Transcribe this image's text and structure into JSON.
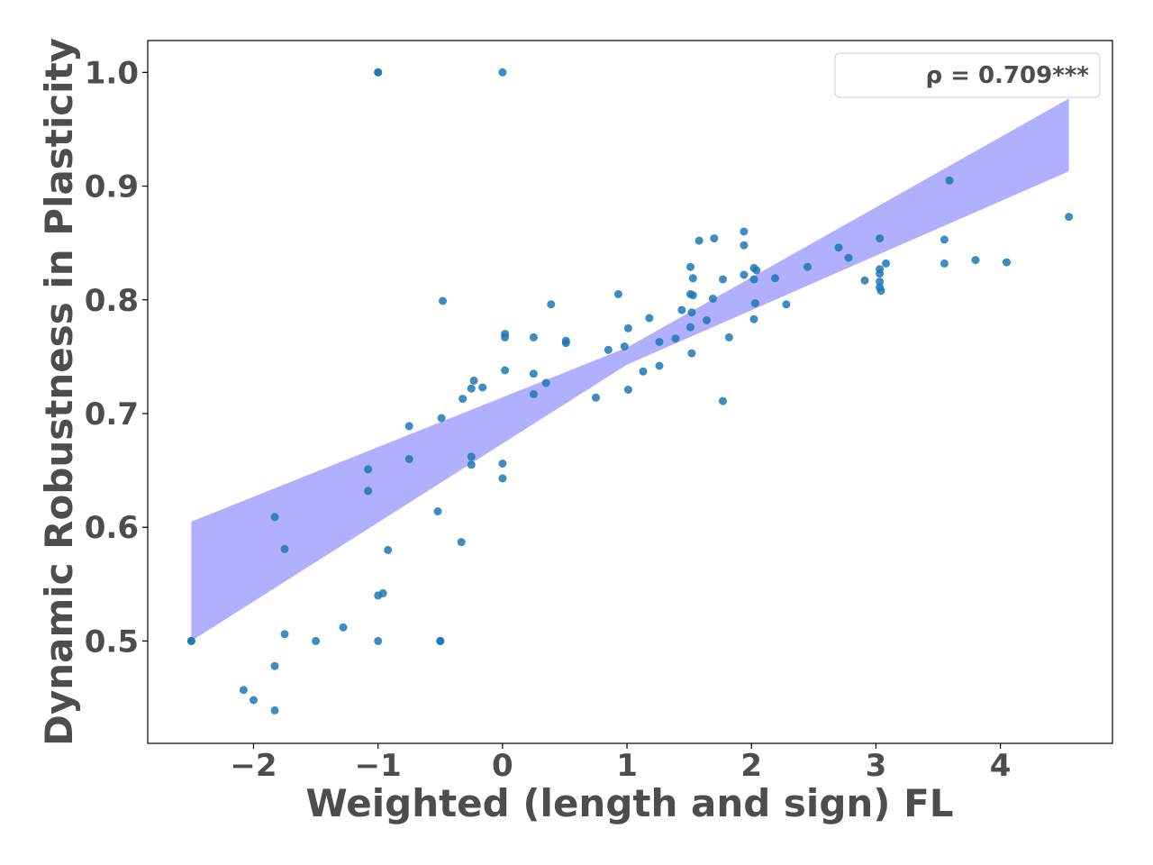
{
  "chart_data": {
    "type": "scatter",
    "title": "",
    "xlabel": "Weighted (length and sign) FL",
    "ylabel": "Dynamic Robustness in Plasticity",
    "xlim": [
      -2.85,
      4.9
    ],
    "ylim": [
      0.41,
      1.028
    ],
    "x_ticks": [
      -2,
      -1,
      0,
      1,
      2,
      3,
      4
    ],
    "x_tick_labels": [
      "−2",
      "−1",
      "0",
      "1",
      "2",
      "3",
      "4"
    ],
    "y_ticks": [
      0.5,
      0.6,
      0.7,
      0.8,
      0.9,
      1.0
    ],
    "y_tick_labels": [
      "0.5",
      "0.6",
      "0.7",
      "0.8",
      "0.9",
      "1.0"
    ],
    "grid": false,
    "legend": {
      "placement": "top-right",
      "text": "ρ = 0.709***"
    },
    "colors": {
      "points": "#1f77b4",
      "band": "#b0b0ff",
      "text": "#4d4d4d"
    },
    "regression_band": {
      "x": [
        -2.5,
        1.0,
        4.55
      ],
      "lower": [
        0.5,
        0.743,
        0.913
      ],
      "upper": [
        0.605,
        0.758,
        0.977
      ]
    },
    "points": [
      {
        "x": -2.5,
        "y": 0.5
      },
      {
        "x": -2.5,
        "y": 0.5
      },
      {
        "x": -2.08,
        "y": 0.457
      },
      {
        "x": -2.0,
        "y": 0.448
      },
      {
        "x": -1.83,
        "y": 0.439
      },
      {
        "x": -1.83,
        "y": 0.478
      },
      {
        "x": -1.83,
        "y": 0.609
      },
      {
        "x": -1.75,
        "y": 0.506
      },
      {
        "x": -1.75,
        "y": 0.581
      },
      {
        "x": -1.5,
        "y": 0.5
      },
      {
        "x": -1.28,
        "y": 0.512
      },
      {
        "x": -1.08,
        "y": 0.651
      },
      {
        "x": -1.08,
        "y": 0.632
      },
      {
        "x": -1.0,
        "y": 1.0
      },
      {
        "x": -1.0,
        "y": 1.0
      },
      {
        "x": -1.0,
        "y": 0.5
      },
      {
        "x": -1.0,
        "y": 0.54
      },
      {
        "x": -0.96,
        "y": 0.542
      },
      {
        "x": -0.92,
        "y": 0.58
      },
      {
        "x": -0.75,
        "y": 0.689
      },
      {
        "x": -0.75,
        "y": 0.66
      },
      {
        "x": -0.52,
        "y": 0.614
      },
      {
        "x": -0.5,
        "y": 0.5
      },
      {
        "x": -0.5,
        "y": 0.5
      },
      {
        "x": -0.49,
        "y": 0.696
      },
      {
        "x": -0.48,
        "y": 0.799
      },
      {
        "x": -0.33,
        "y": 0.587
      },
      {
        "x": -0.32,
        "y": 0.713
      },
      {
        "x": -0.25,
        "y": 0.722
      },
      {
        "x": -0.25,
        "y": 0.662
      },
      {
        "x": -0.25,
        "y": 0.655
      },
      {
        "x": -0.23,
        "y": 0.729
      },
      {
        "x": -0.16,
        "y": 0.723
      },
      {
        "x": 0.0,
        "y": 1.0
      },
      {
        "x": 0.0,
        "y": 0.656
      },
      {
        "x": 0.0,
        "y": 0.643
      },
      {
        "x": 0.02,
        "y": 0.738
      },
      {
        "x": 0.02,
        "y": 0.767
      },
      {
        "x": 0.02,
        "y": 0.77
      },
      {
        "x": 0.25,
        "y": 0.735
      },
      {
        "x": 0.25,
        "y": 0.767
      },
      {
        "x": 0.25,
        "y": 0.717
      },
      {
        "x": 0.35,
        "y": 0.727
      },
      {
        "x": 0.39,
        "y": 0.796
      },
      {
        "x": 0.51,
        "y": 0.764
      },
      {
        "x": 0.51,
        "y": 0.762
      },
      {
        "x": 0.75,
        "y": 0.714
      },
      {
        "x": 0.85,
        "y": 0.756
      },
      {
        "x": 0.93,
        "y": 0.805
      },
      {
        "x": 0.98,
        "y": 0.759
      },
      {
        "x": 1.01,
        "y": 0.775
      },
      {
        "x": 1.01,
        "y": 0.721
      },
      {
        "x": 1.13,
        "y": 0.737
      },
      {
        "x": 1.18,
        "y": 0.784
      },
      {
        "x": 1.26,
        "y": 0.763
      },
      {
        "x": 1.26,
        "y": 0.742
      },
      {
        "x": 1.39,
        "y": 0.766
      },
      {
        "x": 1.44,
        "y": 0.791
      },
      {
        "x": 1.51,
        "y": 0.829
      },
      {
        "x": 1.51,
        "y": 0.805
      },
      {
        "x": 1.51,
        "y": 0.776
      },
      {
        "x": 1.52,
        "y": 0.753
      },
      {
        "x": 1.52,
        "y": 0.789
      },
      {
        "x": 1.53,
        "y": 0.804
      },
      {
        "x": 1.53,
        "y": 0.819
      },
      {
        "x": 1.58,
        "y": 0.852
      },
      {
        "x": 1.64,
        "y": 0.782
      },
      {
        "x": 1.69,
        "y": 0.801
      },
      {
        "x": 1.7,
        "y": 0.854
      },
      {
        "x": 1.77,
        "y": 0.818
      },
      {
        "x": 1.77,
        "y": 0.711
      },
      {
        "x": 1.82,
        "y": 0.767
      },
      {
        "x": 1.94,
        "y": 0.86
      },
      {
        "x": 1.94,
        "y": 0.848
      },
      {
        "x": 1.94,
        "y": 0.822
      },
      {
        "x": 2.02,
        "y": 0.828
      },
      {
        "x": 2.02,
        "y": 0.818
      },
      {
        "x": 2.02,
        "y": 0.783
      },
      {
        "x": 2.03,
        "y": 0.797
      },
      {
        "x": 2.04,
        "y": 0.826
      },
      {
        "x": 2.19,
        "y": 0.819
      },
      {
        "x": 2.28,
        "y": 0.796
      },
      {
        "x": 2.45,
        "y": 0.829
      },
      {
        "x": 2.7,
        "y": 0.846
      },
      {
        "x": 2.78,
        "y": 0.837
      },
      {
        "x": 2.91,
        "y": 0.817
      },
      {
        "x": 3.03,
        "y": 0.854
      },
      {
        "x": 3.03,
        "y": 0.827
      },
      {
        "x": 3.03,
        "y": 0.823
      },
      {
        "x": 3.03,
        "y": 0.816
      },
      {
        "x": 3.03,
        "y": 0.811
      },
      {
        "x": 3.04,
        "y": 0.808
      },
      {
        "x": 3.08,
        "y": 0.832
      },
      {
        "x": 3.55,
        "y": 0.853
      },
      {
        "x": 3.55,
        "y": 0.832
      },
      {
        "x": 3.59,
        "y": 0.905
      },
      {
        "x": 3.8,
        "y": 0.835
      },
      {
        "x": 4.05,
        "y": 0.833
      },
      {
        "x": 4.55,
        "y": 0.873
      }
    ]
  }
}
